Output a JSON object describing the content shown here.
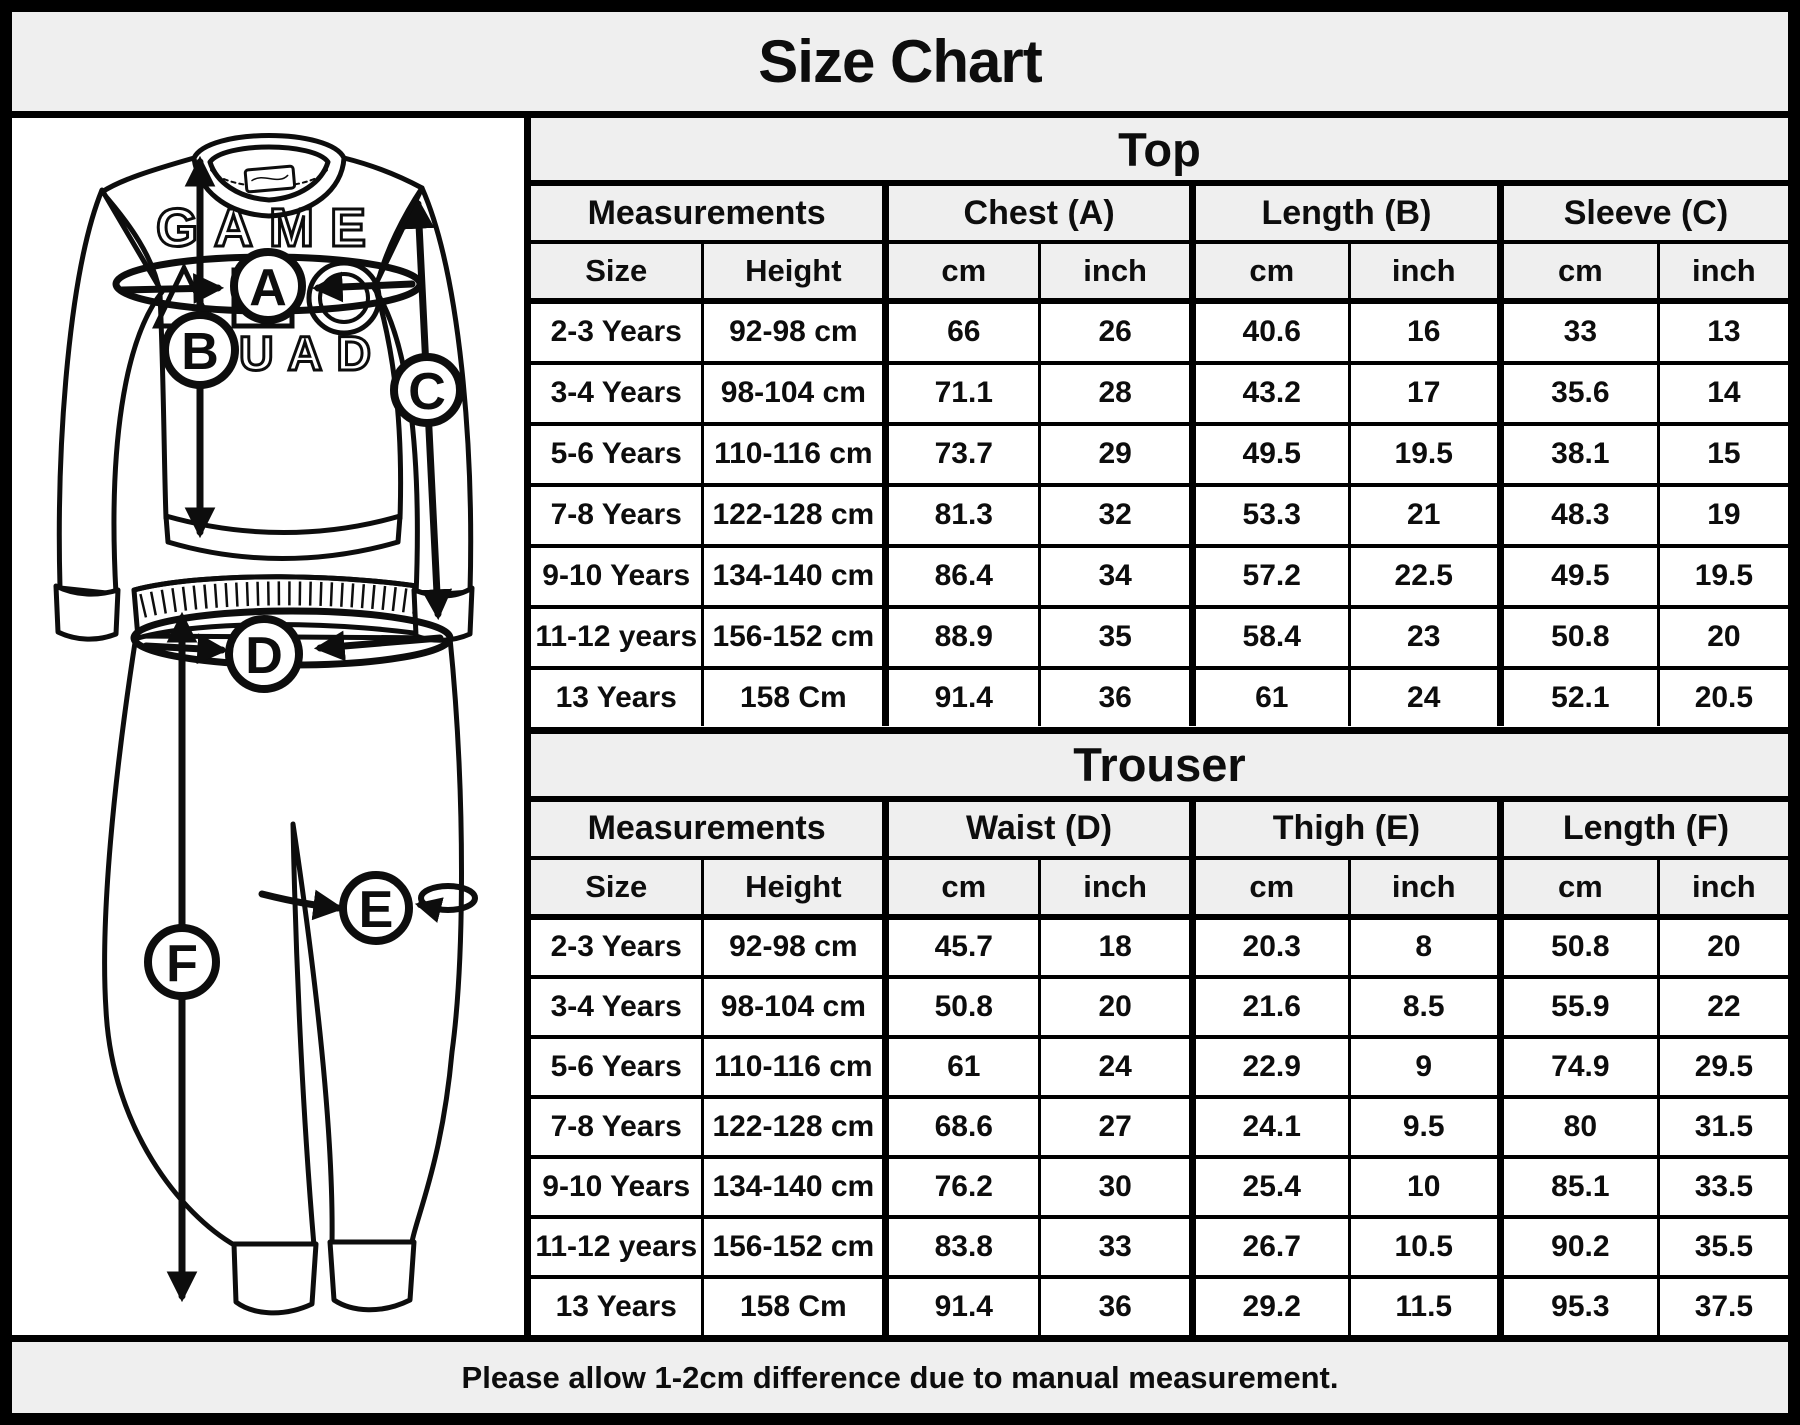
{
  "page_title": "Size Chart",
  "footer_note": "Please allow 1-2cm difference due to manual measurement.",
  "colors": {
    "header_bg": "#efefef",
    "cell_bg": "#ffffff",
    "line": "#0d0d0d"
  },
  "diagram": {
    "markers": [
      "A",
      "B",
      "C",
      "D",
      "E",
      "F"
    ],
    "shirt_print_line1": "GAME",
    "shirt_print_line2": "UAD"
  },
  "chart_data": [
    {
      "type": "table",
      "title": "Top",
      "group_header": [
        "Measurements",
        "Chest (A)",
        "Length (B)",
        "Sleeve (C)"
      ],
      "sub_header": [
        "Size",
        "Height",
        "cm",
        "inch",
        "cm",
        "inch",
        "cm",
        "inch"
      ],
      "rows": [
        [
          "2-3 Years",
          "92-98 cm",
          "66",
          "26",
          "40.6",
          "16",
          "33",
          "13"
        ],
        [
          "3-4 Years",
          "98-104 cm",
          "71.1",
          "28",
          "43.2",
          "17",
          "35.6",
          "14"
        ],
        [
          "5-6 Years",
          "110-116 cm",
          "73.7",
          "29",
          "49.5",
          "19.5",
          "38.1",
          "15"
        ],
        [
          "7-8 Years",
          "122-128 cm",
          "81.3",
          "32",
          "53.3",
          "21",
          "48.3",
          "19"
        ],
        [
          "9-10 Years",
          "134-140 cm",
          "86.4",
          "34",
          "57.2",
          "22.5",
          "49.5",
          "19.5"
        ],
        [
          "11-12 years",
          "156-152 cm",
          "88.9",
          "35",
          "58.4",
          "23",
          "50.8",
          "20"
        ],
        [
          "13 Years",
          "158 Cm",
          "91.4",
          "36",
          "61",
          "24",
          "52.1",
          "20.5"
        ]
      ]
    },
    {
      "type": "table",
      "title": "Trouser",
      "group_header": [
        "Measurements",
        "Waist (D)",
        "Thigh (E)",
        "Length (F)"
      ],
      "sub_header": [
        "Size",
        "Height",
        "cm",
        "inch",
        "cm",
        "inch",
        "cm",
        "inch"
      ],
      "rows": [
        [
          "2-3 Years",
          "92-98 cm",
          "45.7",
          "18",
          "20.3",
          "8",
          "50.8",
          "20"
        ],
        [
          "3-4 Years",
          "98-104 cm",
          "50.8",
          "20",
          "21.6",
          "8.5",
          "55.9",
          "22"
        ],
        [
          "5-6 Years",
          "110-116 cm",
          "61",
          "24",
          "22.9",
          "9",
          "74.9",
          "29.5"
        ],
        [
          "7-8 Years",
          "122-128 cm",
          "68.6",
          "27",
          "24.1",
          "9.5",
          "80",
          "31.5"
        ],
        [
          "9-10 Years",
          "134-140 cm",
          "76.2",
          "30",
          "25.4",
          "10",
          "85.1",
          "33.5"
        ],
        [
          "11-12 years",
          "156-152 cm",
          "83.8",
          "33",
          "26.7",
          "10.5",
          "90.2",
          "35.5"
        ],
        [
          "13 Years",
          "158 Cm",
          "91.4",
          "36",
          "29.2",
          "11.5",
          "95.3",
          "37.5"
        ]
      ]
    }
  ]
}
